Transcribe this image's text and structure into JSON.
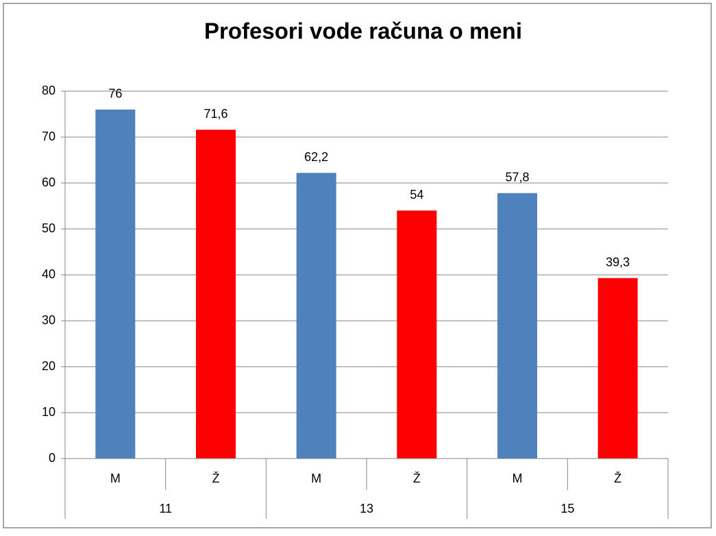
{
  "chart_data": {
    "type": "bar",
    "title": "Profesori vode računa o meni",
    "categories": [
      "M",
      "Ž",
      "M",
      "Ž",
      "M",
      "Ž"
    ],
    "groups": [
      "11",
      "13",
      "15"
    ],
    "values": [
      76,
      71.6,
      62.2,
      54,
      57.8,
      39.3
    ],
    "value_labels": [
      "76",
      "71,6",
      "62,2",
      "54",
      "57,8",
      "39,3"
    ],
    "colors": [
      "#4f81bd",
      "#ff0000",
      "#4f81bd",
      "#ff0000",
      "#4f81bd",
      "#ff0000"
    ],
    "ylim": [
      0,
      80
    ],
    "yticks": [
      0,
      10,
      20,
      30,
      40,
      50,
      60,
      70,
      80
    ],
    "grid": true
  }
}
